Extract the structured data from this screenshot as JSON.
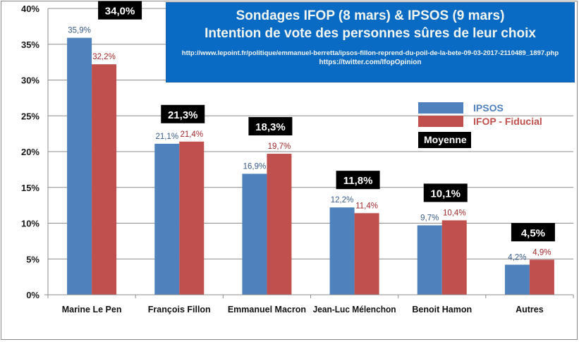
{
  "banner": {
    "title_line1": "Sondages IFOP (8 mars) &  IPSOS (9 mars)",
    "title_line2": "Intention de vote des personnes sûres de leur choix",
    "source_url": "http://www.lepoint.fr/politique/emmanuel-berretta/ipsos-fillon-reprend-du-poil-de-la-bete-09-03-2017-2110489_1897.php",
    "twitter_url": "https://twitter.com/IfopOpinion",
    "background_color": "#0a6bc4"
  },
  "legend": {
    "moyenne_label": "Moyenne"
  },
  "chart_data": {
    "type": "bar",
    "title": "Sondages IFOP (8 mars) & IPSOS (9 mars) — Intention de vote des personnes sûres de leur choix",
    "xlabel": "",
    "ylabel": "",
    "ylim": [
      0,
      40
    ],
    "yticks": [
      0,
      5,
      10,
      15,
      20,
      25,
      30,
      35,
      40
    ],
    "ytick_labels": [
      "0%",
      "5%",
      "10%",
      "15%",
      "20%",
      "25%",
      "30%",
      "35%",
      "40%"
    ],
    "grid": true,
    "legend_position": "right",
    "categories": [
      "Marine Le Pen",
      "François Fillon",
      "Emmanuel Macron",
      "Jean-Luc Mélenchon",
      "Benoit Hamon",
      "Autres"
    ],
    "series": [
      {
        "name": "IPSOS",
        "color": "#4f81bd",
        "label_color": "#385d8a",
        "values": [
          35.9,
          21.1,
          16.9,
          12.2,
          9.7,
          4.2
        ],
        "labels": [
          "35,9%",
          "21,1%",
          "16,9%",
          "12,2%",
          "9,7%",
          "4,2%"
        ]
      },
      {
        "name": "IFOP - Fiducial",
        "color": "#c0504d",
        "label_color": "#a0282a",
        "values": [
          32.2,
          21.4,
          19.7,
          11.4,
          10.4,
          4.9
        ],
        "labels": [
          "32,2%",
          "21,4%",
          "19,7%",
          "11,4%",
          "10,4%",
          "4,9%"
        ]
      }
    ],
    "average": {
      "name": "Moyenne",
      "values": [
        34.0,
        21.3,
        18.3,
        11.8,
        10.1,
        4.5
      ],
      "labels": [
        "34,0%",
        "21,3%",
        "18,3%",
        "11,8%",
        "10,1%",
        "4,5%"
      ]
    }
  }
}
